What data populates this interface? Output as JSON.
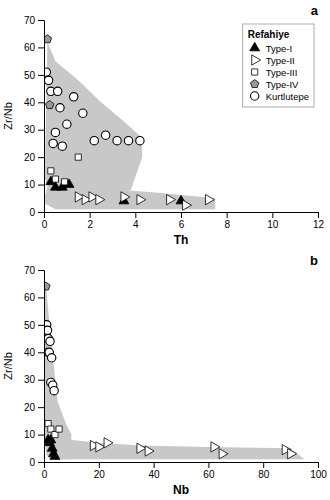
{
  "chart_data": [
    {
      "type": "scatter",
      "x_label": "Th",
      "y_label": "Zr/Nb",
      "xlim": [
        0,
        12
      ],
      "ylim": [
        0,
        70
      ],
      "xticks": [
        0,
        2,
        4,
        6,
        8,
        10,
        12
      ],
      "yticks": [
        0,
        10,
        20,
        30,
        40,
        50,
        60,
        70
      ],
      "annotations": [
        "a"
      ],
      "legend": "upper right",
      "legend_title": "Refahiye",
      "areas": [
        {
          "color": "#c8c8c8",
          "x": [
            0.05,
            0.15,
            0.5,
            1.5,
            2.5,
            3.5,
            4.3,
            4.3,
            3.8,
            2.5,
            1.2,
            0.4,
            0.05
          ],
          "y": [
            20,
            62,
            55,
            48,
            40,
            33,
            27,
            20,
            8,
            5,
            3,
            5,
            12
          ]
        },
        {
          "color": "#c8c8c8",
          "x": [
            0.05,
            0.3,
            0.8,
            1.5,
            2.5,
            3.5,
            5.0,
            7.5,
            7.5,
            5.0,
            3.0,
            1.5,
            0.5,
            0.05
          ],
          "y": [
            6,
            14,
            13,
            12,
            10,
            8,
            7,
            5,
            1,
            1,
            1,
            1,
            1,
            3
          ]
        }
      ],
      "series": [
        {
          "name": "Type-I",
          "color": "#000000",
          "marker": "triangle-up",
          "x": [
            0.3,
            0.5,
            0.8,
            1.1,
            3.5,
            6.0
          ],
          "values": [
            11,
            9,
            9,
            10,
            4,
            4
          ]
        },
        {
          "name": "Type-II",
          "color": "#ffffff",
          "marker": "triangle-right",
          "x": [
            1.5,
            1.8,
            2.1,
            2.4,
            3.5,
            4.2,
            5.5,
            6.2,
            7.2
          ],
          "values": [
            5.5,
            4.5,
            5.5,
            4.5,
            5.5,
            4.5,
            4.5,
            2.5,
            4.5
          ]
        },
        {
          "name": "Type-III",
          "color": "#ffffff",
          "marker": "square",
          "x": [
            0.3,
            0.5,
            0.9,
            1.5
          ],
          "values": [
            15,
            12,
            11,
            20
          ]
        },
        {
          "name": "Type-IV",
          "color": "#999999",
          "marker": "pentagon",
          "x": [
            0.15,
            0.25
          ],
          "values": [
            63,
            39
          ]
        },
        {
          "name": "Kurtlutepe",
          "color": "#ffffff",
          "marker": "circle",
          "x": [
            0.1,
            0.2,
            0.3,
            0.4,
            0.5,
            0.6,
            0.7,
            0.8,
            1.0,
            1.3,
            1.7,
            2.2,
            2.7,
            3.2,
            3.7,
            4.2
          ],
          "values": [
            51,
            48,
            44,
            25,
            29,
            44,
            38,
            24,
            32,
            42,
            36,
            26,
            28,
            26,
            26,
            26
          ]
        }
      ]
    },
    {
      "type": "scatter",
      "x_label": "Nb",
      "y_label": "Zr/Nb",
      "xlim": [
        0,
        100
      ],
      "ylim": [
        0,
        70
      ],
      "xticks": [
        0,
        20,
        40,
        60,
        80,
        100
      ],
      "yticks": [
        0,
        10,
        20,
        30,
        40,
        50,
        60,
        70
      ],
      "annotations": [
        "b"
      ],
      "areas": [
        {
          "color": "#c8c8c8",
          "x": [
            0.3,
            0.7,
            2.0,
            5.0,
            8.0,
            10.0,
            10.0,
            5.0,
            2.0,
            0.8,
            0.3
          ],
          "y": [
            62,
            65,
            50,
            22,
            14,
            10,
            1,
            1,
            1,
            3,
            10
          ]
        },
        {
          "color": "#c8c8c8",
          "x": [
            2.0,
            4.0,
            10.0,
            20.0,
            35.0,
            60.0,
            90.0,
            95.0,
            90.0,
            60.0,
            35.0,
            18.0,
            8.0,
            3.0,
            2.0
          ],
          "y": [
            12,
            10,
            8,
            7,
            6,
            5.5,
            5,
            1,
            1,
            1,
            1,
            1,
            1,
            1,
            3
          ]
        }
      ],
      "series": [
        {
          "color": "#000000",
          "marker": "triangle-up",
          "x": [
            1.5,
            2.0,
            2.5,
            3.0,
            3.5,
            4.0
          ],
          "values": [
            8,
            7,
            8,
            5,
            3,
            2
          ]
        },
        {
          "color": "#ffffff",
          "marker": "triangle-right",
          "x": [
            18,
            20,
            23,
            35,
            38,
            62,
            65,
            88,
            90
          ],
          "values": [
            6,
            5.5,
            7,
            5,
            4,
            5.5,
            3,
            4.5,
            3
          ]
        },
        {
          "color": "#ffffff",
          "marker": "square",
          "x": [
            1.5,
            2.5,
            4.0,
            5.5
          ],
          "values": [
            14,
            12,
            10,
            12
          ]
        },
        {
          "color": "#999999",
          "marker": "pentagon",
          "x": [
            0.7,
            1.0
          ],
          "values": [
            64,
            40
          ]
        },
        {
          "color": "#ffffff",
          "marker": "circle",
          "x": [
            1.0,
            1.3,
            1.6,
            1.9,
            2.2,
            2.5,
            2.8,
            3.2,
            3.7
          ],
          "values": [
            50,
            48,
            45,
            40,
            44,
            29,
            38,
            28,
            26
          ]
        }
      ]
    }
  ]
}
